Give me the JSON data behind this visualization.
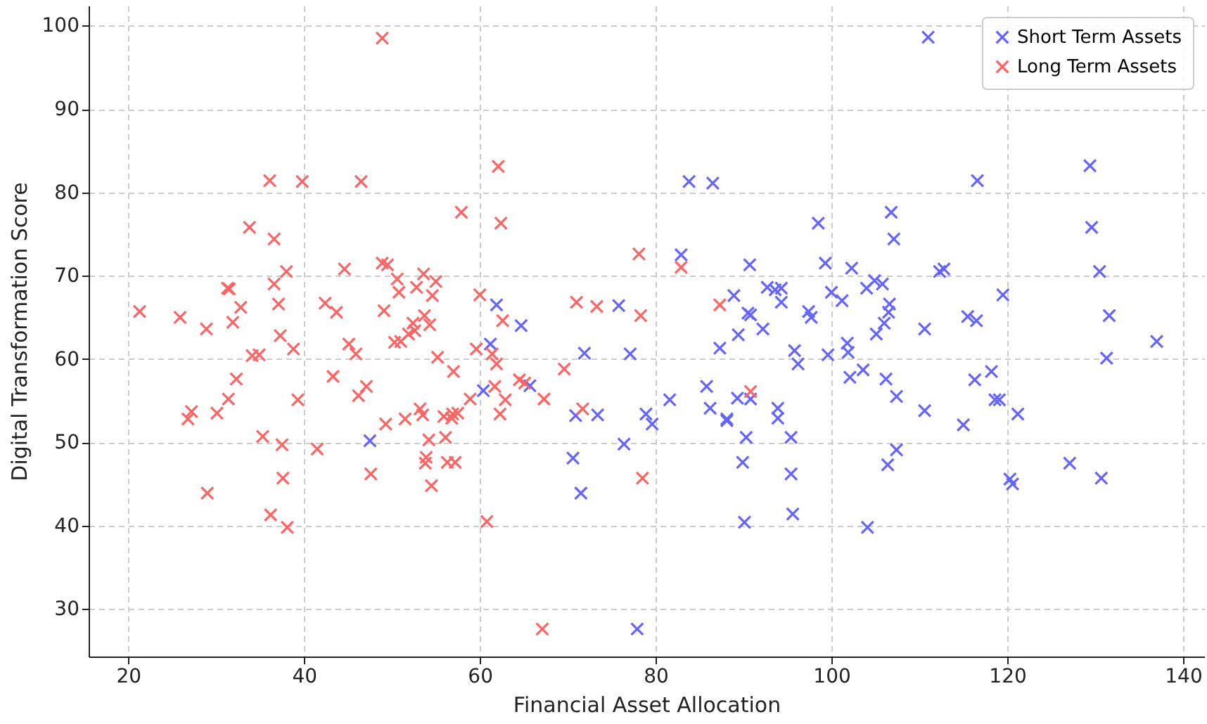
{
  "chart_data": {
    "type": "scatter",
    "xlabel": "Financial Asset Allocation",
    "ylabel": "Digital Transformation Score",
    "xlim": [
      15.5,
      142.4
    ],
    "ylim": [
      24.3,
      102.4
    ],
    "xticks": [
      20,
      40,
      60,
      80,
      100,
      120,
      140
    ],
    "yticks": [
      30,
      40,
      50,
      60,
      70,
      80,
      90,
      100
    ],
    "grid": true,
    "legend": "top right",
    "marker": "cross",
    "series": [
      {
        "name": "Short Term Assets",
        "color": "#6464ff",
        "x": [
          47.5,
          60.4,
          61.2,
          61.9,
          64.7,
          65.7,
          70.6,
          70.9,
          71.5,
          71.9,
          73.4,
          75.8,
          76.4,
          77.1,
          77.9,
          78.9,
          79.6,
          81.6,
          82.9,
          83.8,
          85.8,
          86.2,
          86.5,
          87.3,
          88.1,
          88.1,
          88.9,
          89.3,
          89.4,
          89.9,
          90.1,
          90.3,
          90.5,
          90.7,
          90.8,
          90.8,
          92.2,
          92.7,
          93.6,
          93.9,
          93.9,
          94.3,
          94.3,
          95.4,
          95.4,
          95.6,
          95.8,
          96.2,
          97.4,
          97.7,
          98.5,
          99.3,
          99.6,
          100.0,
          101.2,
          101.8,
          101.9,
          102.1,
          102.3,
          103.6,
          104.0,
          104.1,
          104.9,
          105.1,
          105.8,
          106.0,
          106.2,
          106.4,
          106.5,
          106.6,
          106.8,
          107.1,
          107.4,
          107.4,
          110.6,
          110.6,
          111.0,
          112.3,
          112.8,
          115.0,
          115.5,
          116.3,
          116.5,
          116.6,
          118.2,
          118.6,
          119.1,
          119.5,
          120.3,
          120.6,
          121.2,
          127.1,
          129.4,
          129.6,
          130.5,
          130.7,
          131.3,
          131.6,
          137.0
        ],
        "values": [
          50.2,
          56.2,
          61.8,
          66.5,
          64.0,
          56.8,
          48.1,
          53.2,
          43.9,
          60.7,
          53.3,
          66.4,
          49.8,
          60.6,
          27.6,
          53.4,
          52.2,
          55.1,
          72.5,
          81.3,
          56.7,
          54.1,
          81.1,
          61.3,
          52.6,
          52.8,
          67.6,
          55.3,
          62.9,
          47.6,
          40.4,
          50.6,
          65.5,
          71.3,
          65.3,
          55.2,
          63.6,
          68.6,
          68.3,
          52.9,
          54.1,
          66.8,
          68.5,
          50.6,
          46.2,
          41.4,
          61.0,
          59.4,
          65.7,
          65.0,
          76.3,
          71.5,
          60.5,
          68.0,
          67.0,
          61.9,
          60.8,
          57.8,
          70.9,
          58.7,
          68.5,
          39.8,
          69.4,
          63.0,
          69.0,
          64.3,
          57.6,
          47.3,
          65.6,
          66.6,
          77.6,
          74.4,
          55.5,
          49.1,
          53.8,
          63.6,
          98.6,
          70.5,
          70.8,
          52.1,
          65.1,
          57.5,
          64.6,
          81.4,
          58.5,
          55.1,
          55.1,
          67.7,
          45.6,
          45.0,
          53.4,
          47.5,
          83.2,
          75.8,
          70.5,
          45.7,
          60.1,
          65.2,
          62.1
        ]
      },
      {
        "name": "Long Term Assets",
        "color": "#ff6464",
        "x": [
          21.3,
          25.9,
          26.8,
          27.2,
          28.9,
          29.0,
          30.1,
          31.3,
          31.5,
          31.4,
          31.9,
          32.3,
          32.8,
          33.8,
          34.1,
          34.9,
          35.3,
          36.1,
          36.2,
          36.6,
          36.6,
          37.1,
          37.3,
          37.5,
          37.6,
          38.0,
          38.1,
          38.8,
          39.3,
          39.8,
          41.5,
          42.4,
          43.3,
          43.7,
          44.6,
          45.1,
          45.9,
          46.2,
          46.5,
          47.1,
          47.6,
          48.9,
          48.9,
          49.1,
          49.3,
          49.5,
          50.3,
          50.6,
          50.8,
          51.0,
          51.5,
          51.9,
          52.4,
          52.6,
          52.8,
          53.2,
          53.5,
          53.6,
          53.7,
          53.8,
          53.9,
          54.3,
          54.2,
          54.5,
          54.6,
          55.0,
          55.2,
          55.9,
          56.1,
          56.3,
          56.8,
          56.9,
          57.0,
          57.2,
          57.5,
          57.9,
          58.9,
          59.6,
          60.0,
          60.8,
          61.4,
          61.7,
          61.9,
          62.1,
          62.3,
          62.4,
          62.6,
          62.9,
          64.5,
          65.1,
          67.1,
          67.3,
          69.6,
          71.0,
          71.7,
          73.3,
          78.1,
          78.3,
          78.5,
          82.9,
          87.3,
          90.8
        ],
        "values": [
          65.7,
          65.0,
          52.8,
          53.7,
          63.6,
          43.9,
          53.5,
          68.5,
          68.4,
          55.2,
          64.4,
          57.6,
          66.2,
          75.8,
          60.4,
          60.5,
          50.7,
          81.4,
          41.3,
          74.4,
          69.0,
          66.6,
          62.8,
          49.7,
          45.7,
          70.5,
          39.8,
          61.2,
          55.1,
          81.3,
          49.2,
          66.7,
          57.9,
          65.6,
          70.8,
          61.8,
          60.6,
          55.6,
          81.3,
          56.7,
          46.2,
          71.5,
          98.5,
          65.8,
          52.2,
          71.3,
          62.0,
          69.6,
          68.0,
          62.1,
          52.8,
          63.0,
          64.3,
          63.4,
          68.6,
          54.0,
          53.3,
          70.2,
          65.2,
          47.5,
          48.2,
          64.1,
          50.3,
          44.8,
          67.6,
          69.3,
          60.2,
          53.1,
          50.6,
          47.6,
          52.9,
          53.4,
          58.5,
          47.6,
          53.5,
          77.6,
          55.2,
          61.2,
          67.7,
          40.5,
          60.6,
          56.7,
          59.4,
          83.1,
          53.4,
          76.3,
          64.6,
          55.1,
          57.5,
          57.1,
          27.6,
          55.2,
          58.8,
          66.8,
          54.0,
          66.3,
          72.6,
          65.2,
          45.7,
          71.0,
          66.5,
          56.1
        ]
      }
    ]
  }
}
